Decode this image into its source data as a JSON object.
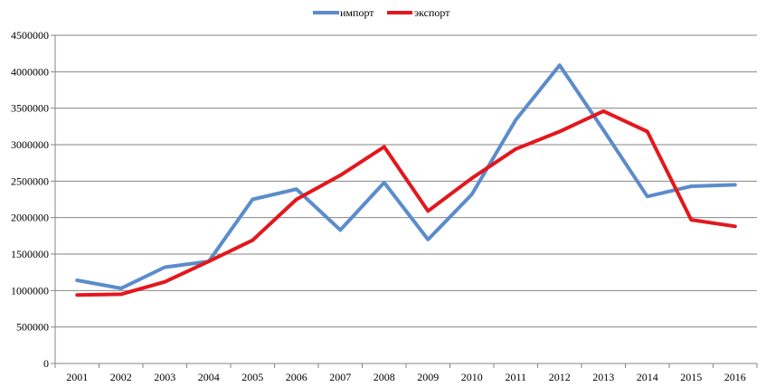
{
  "chart_data": {
    "type": "line",
    "title": "",
    "xlabel": "",
    "ylabel": "",
    "categories": [
      "2001",
      "2002",
      "2003",
      "2004",
      "2005",
      "2006",
      "2007",
      "2008",
      "2009",
      "2010",
      "2011",
      "2012",
      "2013",
      "2014",
      "2015",
      "2016"
    ],
    "ylim": [
      0,
      4500000
    ],
    "y_ticks": [
      0,
      500000,
      1000000,
      1500000,
      2000000,
      2500000,
      3000000,
      3500000,
      4000000,
      4500000
    ],
    "y_tick_labels": [
      "0",
      "500000",
      "1000000",
      "1500000",
      "2000000",
      "2500000",
      "3000000",
      "3500000",
      "4000000",
      "4500000"
    ],
    "grid": "horizontal",
    "legend_position": "top-center",
    "series": [
      {
        "name": "импорт",
        "color": "#5B8CCB",
        "values": [
          1140000,
          1030000,
          1320000,
          1400000,
          2250000,
          2390000,
          1830000,
          2480000,
          1700000,
          2320000,
          3340000,
          4090000,
          3200000,
          2290000,
          2430000,
          2450000
        ]
      },
      {
        "name": "экспорт",
        "color": "#E3171D",
        "values": [
          940000,
          950000,
          1120000,
          1400000,
          1690000,
          2250000,
          2580000,
          2970000,
          2090000,
          2540000,
          2940000,
          3180000,
          3460000,
          3180000,
          1970000,
          1880000
        ]
      }
    ]
  }
}
